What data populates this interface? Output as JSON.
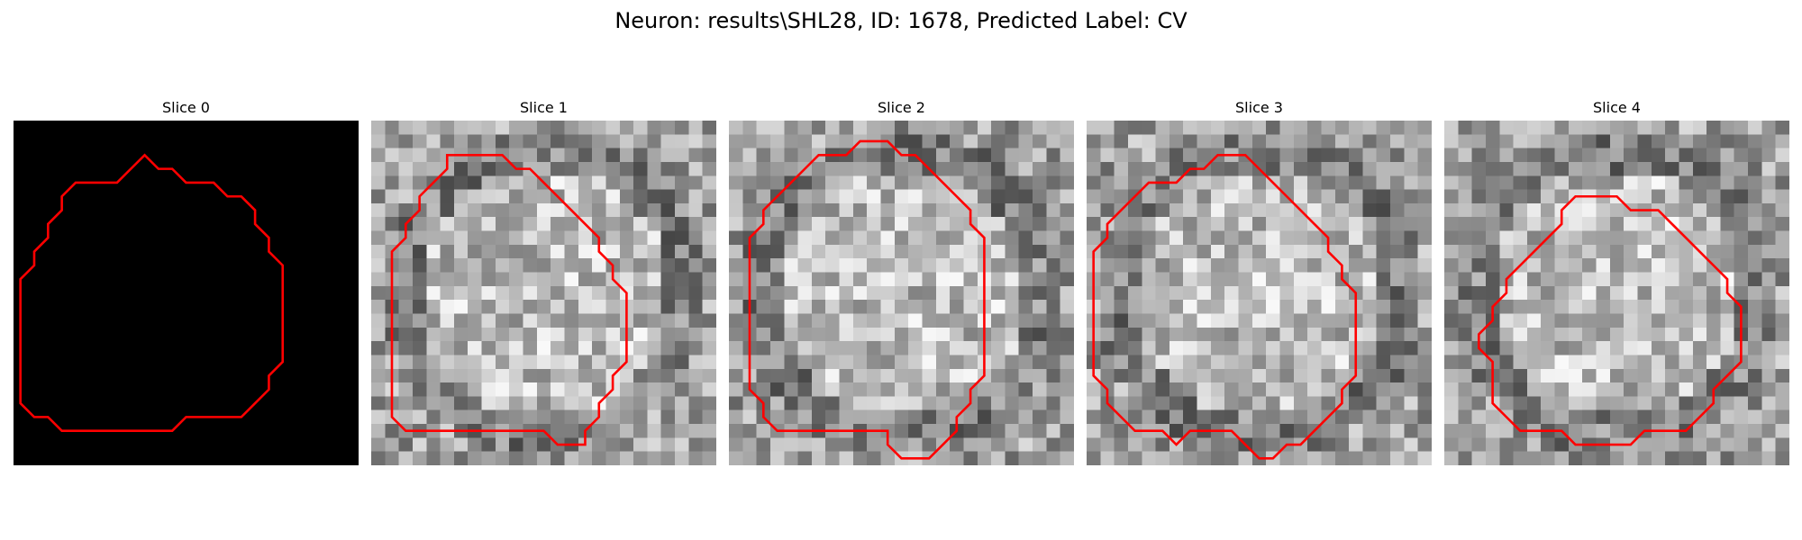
{
  "figure": {
    "title": "Neuron: results\\SHL28, ID: 1678, Predicted Label: CV"
  },
  "contour_color": "#ff0000",
  "panels": [
    {
      "title": "Slice 0",
      "image": "solid black background",
      "contour_grid": [
        [
          10,
          3
        ],
        [
          11,
          3
        ],
        [
          12,
          4
        ],
        [
          14,
          4
        ],
        [
          15,
          5
        ],
        [
          16,
          5
        ],
        [
          17,
          6
        ],
        [
          17,
          7
        ],
        [
          18,
          8
        ],
        [
          18,
          9
        ],
        [
          19,
          10
        ],
        [
          19,
          17
        ],
        [
          18,
          18
        ],
        [
          18,
          19
        ],
        [
          17,
          20
        ],
        [
          16,
          21
        ],
        [
          12,
          21
        ],
        [
          11,
          22
        ],
        [
          3,
          22
        ],
        [
          2,
          21
        ],
        [
          1,
          21
        ],
        [
          0,
          20
        ],
        [
          0,
          11
        ],
        [
          1,
          10
        ],
        [
          1,
          9
        ],
        [
          2,
          8
        ],
        [
          2,
          7
        ],
        [
          3,
          6
        ],
        [
          3,
          5
        ],
        [
          4,
          4
        ],
        [
          7,
          4
        ],
        [
          9,
          2
        ]
      ]
    },
    {
      "title": "Slice 1",
      "image": "grayscale microscopy texture",
      "contour_grid": [
        [
          6,
          2
        ],
        [
          9,
          2
        ],
        [
          10,
          3
        ],
        [
          11,
          3
        ],
        [
          12,
          4
        ],
        [
          13,
          5
        ],
        [
          14,
          6
        ],
        [
          15,
          7
        ],
        [
          16,
          8
        ],
        [
          16,
          9
        ],
        [
          17,
          10
        ],
        [
          17,
          11
        ],
        [
          18,
          12
        ],
        [
          18,
          17
        ],
        [
          17,
          18
        ],
        [
          17,
          19
        ],
        [
          16,
          20
        ],
        [
          16,
          21
        ],
        [
          15,
          22
        ],
        [
          15,
          23
        ],
        [
          13,
          23
        ],
        [
          12,
          22
        ],
        [
          2,
          22
        ],
        [
          1,
          21
        ],
        [
          1,
          9
        ],
        [
          2,
          8
        ],
        [
          2,
          7
        ],
        [
          3,
          6
        ],
        [
          3,
          5
        ],
        [
          4,
          4
        ],
        [
          5,
          3
        ],
        [
          5,
          2
        ]
      ]
    },
    {
      "title": "Slice 2",
      "image": "grayscale microscopy texture",
      "contour_grid": [
        [
          9,
          1
        ],
        [
          11,
          1
        ],
        [
          12,
          2
        ],
        [
          13,
          2
        ],
        [
          14,
          3
        ],
        [
          15,
          4
        ],
        [
          16,
          5
        ],
        [
          17,
          6
        ],
        [
          17,
          7
        ],
        [
          18,
          8
        ],
        [
          18,
          14
        ],
        [
          18,
          15
        ],
        [
          18,
          18
        ],
        [
          17,
          19
        ],
        [
          17,
          20
        ],
        [
          16,
          21
        ],
        [
          16,
          22
        ],
        [
          15,
          23
        ],
        [
          14,
          24
        ],
        [
          12,
          24
        ],
        [
          11,
          23
        ],
        [
          11,
          22
        ],
        [
          10,
          22
        ],
        [
          3,
          22
        ],
        [
          2,
          21
        ],
        [
          2,
          20
        ],
        [
          1,
          19
        ],
        [
          1,
          18
        ],
        [
          1,
          8
        ],
        [
          2,
          7
        ],
        [
          2,
          6
        ],
        [
          3,
          5
        ],
        [
          4,
          4
        ],
        [
          5,
          3
        ],
        [
          6,
          2
        ],
        [
          8,
          2
        ]
      ]
    },
    {
      "title": "Slice 3",
      "image": "grayscale microscopy texture",
      "contour_grid": [
        [
          10,
          2
        ],
        [
          11,
          2
        ],
        [
          12,
          3
        ],
        [
          13,
          4
        ],
        [
          14,
          5
        ],
        [
          15,
          6
        ],
        [
          16,
          7
        ],
        [
          17,
          8
        ],
        [
          17,
          9
        ],
        [
          18,
          10
        ],
        [
          18,
          11
        ],
        [
          19,
          12
        ],
        [
          19,
          18
        ],
        [
          18,
          19
        ],
        [
          18,
          20
        ],
        [
          17,
          21
        ],
        [
          16,
          22
        ],
        [
          15,
          23
        ],
        [
          14,
          23
        ],
        [
          13,
          24
        ],
        [
          12,
          24
        ],
        [
          12,
          24
        ],
        [
          11,
          23
        ],
        [
          10,
          22
        ],
        [
          7,
          22
        ],
        [
          6,
          23
        ],
        [
          5,
          22
        ],
        [
          3,
          22
        ],
        [
          2,
          21
        ],
        [
          1,
          20
        ],
        [
          1,
          19
        ],
        [
          0,
          18
        ],
        [
          0,
          9
        ],
        [
          1,
          8
        ],
        [
          1,
          7
        ],
        [
          2,
          6
        ],
        [
          3,
          5
        ],
        [
          4,
          4
        ],
        [
          5,
          4
        ],
        [
          6,
          4
        ],
        [
          7,
          3
        ],
        [
          8,
          3
        ],
        [
          9,
          2
        ]
      ]
    },
    {
      "title": "Slice 4",
      "image": "grayscale microscopy texture",
      "contour_grid": [
        [
          9,
          5
        ],
        [
          12,
          5
        ],
        [
          13,
          6
        ],
        [
          15,
          6
        ],
        [
          16,
          7
        ],
        [
          17,
          8
        ],
        [
          18,
          9
        ],
        [
          19,
          10
        ],
        [
          20,
          11
        ],
        [
          20,
          12
        ],
        [
          21,
          13
        ],
        [
          21,
          17
        ],
        [
          20,
          18
        ],
        [
          19,
          19
        ],
        [
          19,
          20
        ],
        [
          18,
          21
        ],
        [
          17,
          22
        ],
        [
          14,
          22
        ],
        [
          13,
          23
        ],
        [
          9,
          23
        ],
        [
          8,
          22
        ],
        [
          5,
          22
        ],
        [
          4,
          21
        ],
        [
          3,
          20
        ],
        [
          3,
          19
        ],
        [
          3,
          18
        ],
        [
          3,
          17
        ],
        [
          2,
          16
        ],
        [
          2,
          15
        ],
        [
          3,
          14
        ],
        [
          3,
          13
        ],
        [
          4,
          12
        ],
        [
          4,
          11
        ],
        [
          5,
          10
        ],
        [
          6,
          9
        ],
        [
          7,
          8
        ],
        [
          8,
          7
        ],
        [
          8,
          6
        ]
      ]
    }
  ]
}
